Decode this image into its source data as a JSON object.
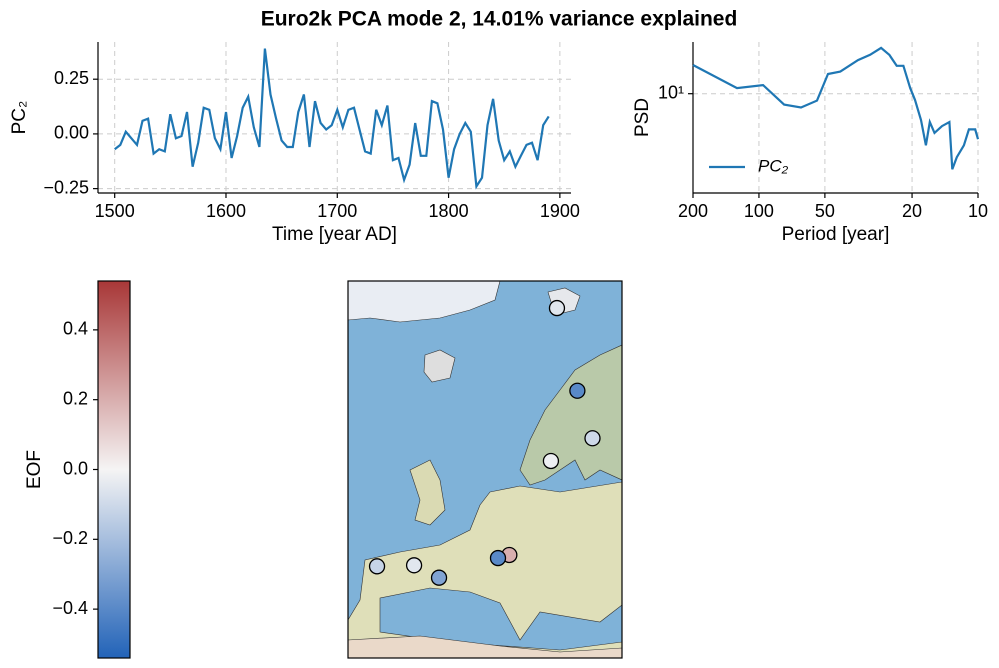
{
  "title": "Euro2k PCA mode 2, 14.01% variance explained",
  "chart_data": [
    {
      "type": "line",
      "xlabel": "Time [year AD]",
      "ylabel": "PC₂",
      "color": "#1f77b4",
      "grid": true,
      "x": [
        1500,
        1505,
        1510,
        1515,
        1520,
        1525,
        1530,
        1535,
        1540,
        1545,
        1550,
        1555,
        1560,
        1565,
        1570,
        1575,
        1580,
        1585,
        1590,
        1595,
        1600,
        1605,
        1610,
        1615,
        1620,
        1625,
        1630,
        1635,
        1640,
        1645,
        1650,
        1655,
        1660,
        1665,
        1670,
        1675,
        1680,
        1685,
        1690,
        1695,
        1700,
        1705,
        1710,
        1715,
        1720,
        1725,
        1730,
        1735,
        1740,
        1745,
        1750,
        1755,
        1760,
        1765,
        1770,
        1775,
        1780,
        1785,
        1790,
        1795,
        1800,
        1805,
        1810,
        1815,
        1820,
        1825,
        1830,
        1835,
        1840,
        1845,
        1850,
        1855,
        1860,
        1865,
        1870,
        1875,
        1880,
        1885,
        1890
      ],
      "values": [
        -0.07,
        -0.05,
        0.01,
        -0.02,
        -0.05,
        0.06,
        0.07,
        -0.09,
        -0.07,
        -0.08,
        0.09,
        -0.02,
        -0.01,
        0.1,
        -0.15,
        -0.04,
        0.12,
        0.11,
        -0.02,
        -0.07,
        0.1,
        -0.11,
        -0.01,
        0.12,
        0.17,
        0.03,
        -0.06,
        0.39,
        0.18,
        0.07,
        -0.03,
        -0.06,
        -0.06,
        0.1,
        0.18,
        -0.06,
        0.15,
        0.05,
        0.02,
        0.04,
        0.11,
        0.03,
        0.11,
        0.12,
        0.02,
        -0.08,
        -0.09,
        0.11,
        0.04,
        0.13,
        -0.12,
        -0.11,
        -0.21,
        -0.14,
        0.05,
        -0.1,
        -0.1,
        0.15,
        0.14,
        0.02,
        -0.2,
        -0.07,
        0.0,
        0.05,
        0.01,
        -0.24,
        -0.2,
        0.04,
        0.16,
        -0.03,
        -0.12,
        -0.08,
        -0.15,
        -0.1,
        -0.05,
        -0.04,
        -0.12,
        0.04,
        0.08
      ],
      "xlim": [
        1485,
        1910
      ],
      "xticks": [
        1500,
        1600,
        1700,
        1800,
        1900
      ],
      "ylim": [
        -0.27,
        0.42
      ],
      "yticks": [
        {
          "value": -0.25,
          "label": "−0.25"
        },
        {
          "value": 0,
          "label": "0.00"
        },
        {
          "value": 0.25,
          "label": "0.25"
        }
      ]
    },
    {
      "type": "line",
      "xlabel": "Period [year]",
      "ylabel": "PSD",
      "xscale": "log",
      "yscale": "log",
      "grid": true,
      "legend": "lower left",
      "x": [
        200,
        126,
        95.7,
        76.8,
        64.3,
        54.3,
        48.4,
        42.5,
        35.3,
        31.1,
        27.7,
        25.4,
        23.5,
        21.9,
        20.4,
        19.4,
        18.2,
        17.3,
        16.6,
        15.8,
        14.6,
        13.5,
        13.1,
        12.5,
        11.6,
        11.0,
        10.3,
        10.0
      ],
      "series": [
        {
          "name": "PC₂",
          "color": "#1f77b4",
          "values": [
            15.5,
            10.9,
            11.4,
            8.47,
            8.1,
            9.0,
            13.5,
            14.0,
            16.7,
            18.1,
            20.1,
            18.1,
            15.3,
            15.3,
            10.9,
            9.1,
            6.7,
            4.55,
            6.5,
            5.5,
            6.1,
            6.5,
            3.16,
            3.8,
            4.55,
            5.8,
            5.8,
            5.0
          ]
        }
      ],
      "xlim": [
        200,
        10
      ],
      "xticks": [
        200,
        100,
        50,
        20,
        10
      ],
      "ylim": [
        2.2,
        22
      ],
      "yticks": [
        {
          "value": 10,
          "label": "10¹"
        }
      ]
    },
    {
      "type": "colorbar",
      "ylabel": "EOF",
      "colors": [
        "#2263b8",
        "#f5f4f4",
        "#a83737"
      ],
      "ylim": [
        -0.54,
        0.54
      ],
      "yticks": [
        {
          "value": -0.4,
          "label": "−0.4"
        },
        {
          "value": -0.2,
          "label": "−0.2"
        },
        {
          "value": 0,
          "label": "0.0"
        },
        0.2,
        0.4
      ]
    },
    {
      "type": "map",
      "lon": [
        17.8,
        20.5,
        22.5,
        17.0,
        11.5,
        10.0,
        -6.0,
        -1.1,
        2.2
      ],
      "lat": [
        70.0,
        62.0,
        57.4,
        55.2,
        46.1,
        45.8,
        45.0,
        45.1,
        43.9
      ],
      "values": [
        -0.05,
        -0.4,
        -0.1,
        -0.02,
        0.2,
        -0.4,
        -0.12,
        -0.05,
        -0.3
      ]
    }
  ]
}
